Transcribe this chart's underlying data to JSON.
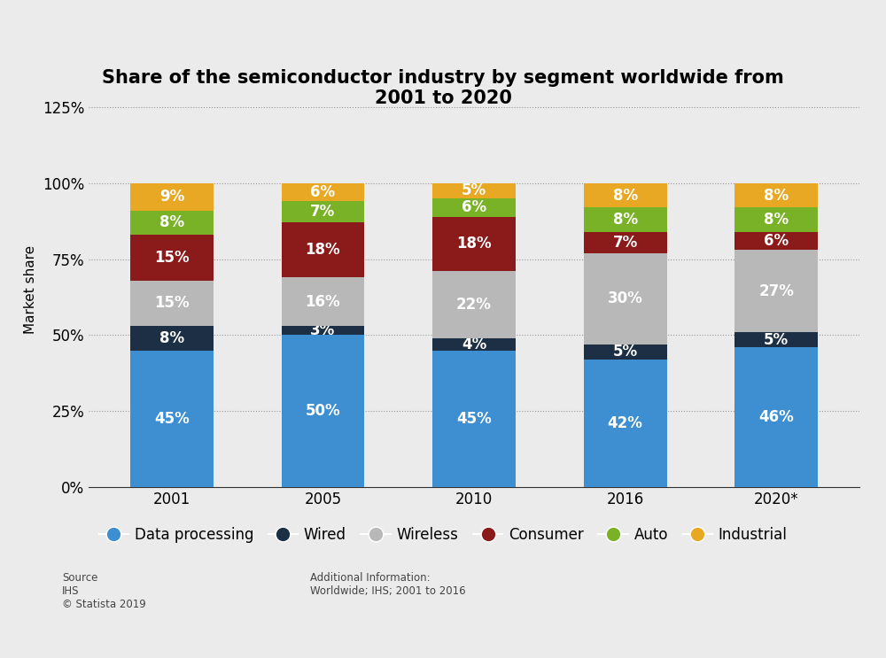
{
  "title": "Share of the semiconductor industry by segment worldwide from\n2001 to 2020",
  "years": [
    "2001",
    "2005",
    "2010",
    "2016",
    "2020*"
  ],
  "segments": {
    "Data processing": [
      45,
      50,
      45,
      42,
      46
    ],
    "Wired": [
      8,
      3,
      4,
      5,
      5
    ],
    "Wireless": [
      15,
      16,
      22,
      30,
      27
    ],
    "Consumer": [
      15,
      18,
      18,
      7,
      6
    ],
    "Auto": [
      8,
      7,
      6,
      8,
      8
    ],
    "Industrial": [
      9,
      6,
      5,
      8,
      8
    ]
  },
  "colors": {
    "Data processing": "#3d8fd1",
    "Wired": "#1c2f45",
    "Wireless": "#b8b8b8",
    "Consumer": "#8b1a1a",
    "Auto": "#79b226",
    "Industrial": "#e8a824"
  },
  "ylabel": "Market share",
  "yticks": [
    0,
    25,
    50,
    75,
    100,
    125
  ],
  "ytick_labels": [
    "0%",
    "25%",
    "50%",
    "75%",
    "100%",
    "125%"
  ],
  "ylim": [
    0,
    130
  ],
  "bar_width": 0.55,
  "background_color": "#ebebeb",
  "plot_bg_color": "#ebebeb",
  "source_text": "Source\nIHS\n© Statista 2019",
  "additional_info": "Additional Information:\nWorldwide; IHS; 2001 to 2016",
  "title_fontsize": 15,
  "label_fontsize": 11,
  "tick_fontsize": 12,
  "legend_fontsize": 12,
  "text_label_fontsize": 12
}
